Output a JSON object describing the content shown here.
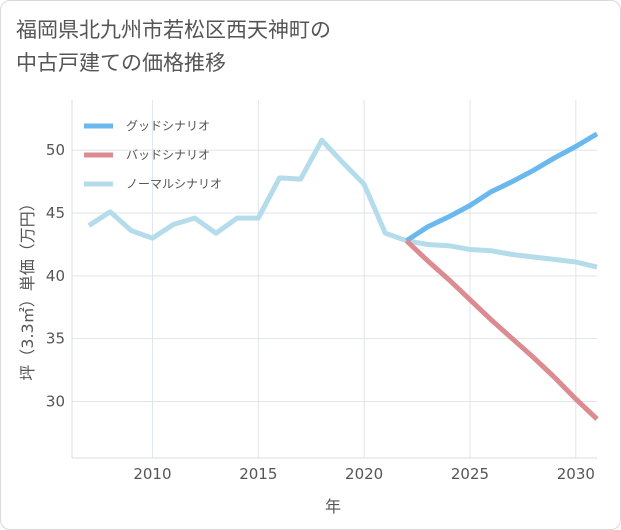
{
  "chart_data": {
    "type": "line",
    "title_lines": [
      "福岡県北九州市若松区西天神町の",
      "中古戸建ての価格推移"
    ],
    "xlabel": "年",
    "ylabel": "坪（3.3㎡）単価（万円）",
    "xlim": [
      2006.2,
      2031
    ],
    "ylim": [
      25.5,
      54
    ],
    "x_ticks": [
      2010,
      2015,
      2020,
      2025,
      2030
    ],
    "y_ticks": [
      30,
      35,
      40,
      45,
      50
    ],
    "grid": true,
    "legend_position": "top-left",
    "series": [
      {
        "name": "グッドシナリオ",
        "color": "#6ab8ee",
        "x": [
          2022,
          2023,
          2024,
          2025,
          2026,
          2027,
          2028,
          2029,
          2030,
          2031
        ],
        "values": [
          42.8,
          43.9,
          44.7,
          45.6,
          46.7,
          47.5,
          48.4,
          49.4,
          50.3,
          51.3
        ]
      },
      {
        "name": "バッドシナリオ",
        "color": "#dc8c91",
        "x": [
          2022,
          2023,
          2024,
          2025,
          2026,
          2027,
          2028,
          2029,
          2030,
          2031
        ],
        "values": [
          42.8,
          41.2,
          39.7,
          38.1,
          36.5,
          35.0,
          33.5,
          31.9,
          30.2,
          28.6
        ]
      },
      {
        "name": "ノーマルシナリオ",
        "color": "#b5dcea",
        "x": [
          2007,
          2008,
          2009,
          2010,
          2011,
          2012,
          2013,
          2014,
          2015,
          2016,
          2017,
          2018,
          2019,
          2020,
          2021,
          2022,
          2023,
          2024,
          2025,
          2026,
          2027,
          2028,
          2029,
          2030,
          2031
        ],
        "values": [
          44.0,
          45.1,
          43.6,
          43.0,
          44.1,
          44.6,
          43.4,
          44.6,
          44.6,
          47.8,
          47.7,
          50.8,
          49.0,
          47.3,
          43.4,
          42.8,
          42.5,
          42.4,
          42.1,
          42.0,
          41.7,
          41.5,
          41.3,
          41.1,
          40.7
        ]
      }
    ]
  }
}
